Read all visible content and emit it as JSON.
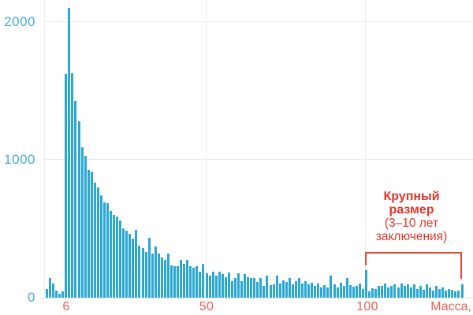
{
  "chart_data": {
    "type": "bar",
    "title": "",
    "xlabel": "Масса,",
    "ylabel": "",
    "grid": true,
    "legend_position": "none",
    "x_tick_labels": [
      "6",
      "50",
      "100"
    ],
    "x_tick_values": [
      6,
      50,
      100
    ],
    "y_tick_labels": [
      "0",
      "1000",
      "2000"
    ],
    "y_tick_values": [
      0,
      1000,
      2000
    ],
    "xlim": [
      0,
      133
    ],
    "ylim": [
      0,
      2150
    ],
    "bin_width": 1,
    "x_start": 0,
    "values": [
      60,
      140,
      100,
      50,
      30,
      45,
      1625,
      2100,
      1630,
      1430,
      1280,
      1090,
      1030,
      925,
      915,
      835,
      800,
      745,
      690,
      685,
      630,
      600,
      590,
      560,
      505,
      485,
      465,
      430,
      490,
      375,
      360,
      330,
      435,
      320,
      370,
      320,
      290,
      275,
      320,
      235,
      230,
      230,
      275,
      245,
      275,
      230,
      215,
      230,
      190,
      245,
      175,
      160,
      190,
      160,
      190,
      170,
      150,
      185,
      120,
      145,
      175,
      120,
      170,
      150,
      145,
      145,
      115,
      145,
      85,
      160,
      90,
      95,
      160,
      105,
      125,
      115,
      145,
      95,
      120,
      145,
      105,
      120,
      95,
      110,
      85,
      105,
      75,
      90,
      75,
      160,
      95,
      75,
      110,
      85,
      145,
      90,
      80,
      85,
      105,
      65,
      200,
      45,
      70,
      65,
      85,
      85,
      105,
      75,
      85,
      95,
      75,
      105,
      85,
      95,
      75,
      95,
      65,
      85,
      55,
      95,
      75,
      50,
      85,
      65,
      75,
      50,
      65,
      55,
      45,
      50,
      95
    ],
    "annotation": {
      "bold_lines": [
        "Крупный",
        "размер"
      ],
      "normal_lines": [
        "(3–10 лет",
        "заключения)"
      ],
      "bracket_x_range": [
        100,
        130
      ]
    },
    "colors": {
      "bar": "#2ba7d1",
      "y_tick_label": "#4aacd6",
      "x_tick_label": "#ec5f52",
      "annotation": "#e2362a",
      "bracket": "#e5473b",
      "gridline": "#ececec"
    }
  }
}
